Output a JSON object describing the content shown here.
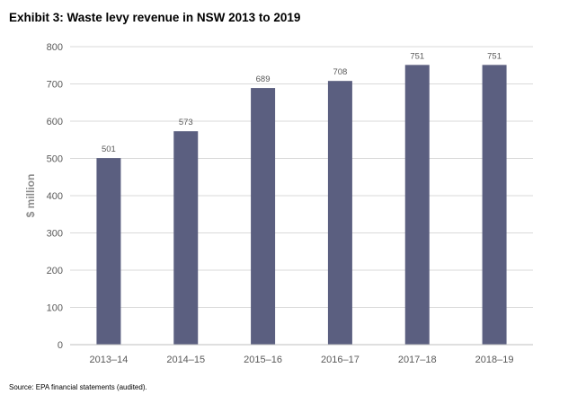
{
  "title": "Exhibit 3: Waste levy revenue in NSW 2013 to 2019",
  "source": "Source: EPA financial statements (audited).",
  "chart_data": {
    "type": "bar",
    "title": "Exhibit 3: Waste levy revenue in NSW 2013 to 2019",
    "xlabel": "",
    "ylabel": "$ million",
    "categories": [
      "2013–14",
      "2014–15",
      "2015–16",
      "2016–17",
      "2017–18",
      "2018–19"
    ],
    "values": [
      501,
      573,
      689,
      708,
      751,
      751
    ],
    "ylim": [
      0,
      800
    ],
    "yticks": [
      0,
      100,
      200,
      300,
      400,
      500,
      600,
      700,
      800
    ],
    "grid": true,
    "legend": "none",
    "bar_color": "#5b5f80"
  }
}
